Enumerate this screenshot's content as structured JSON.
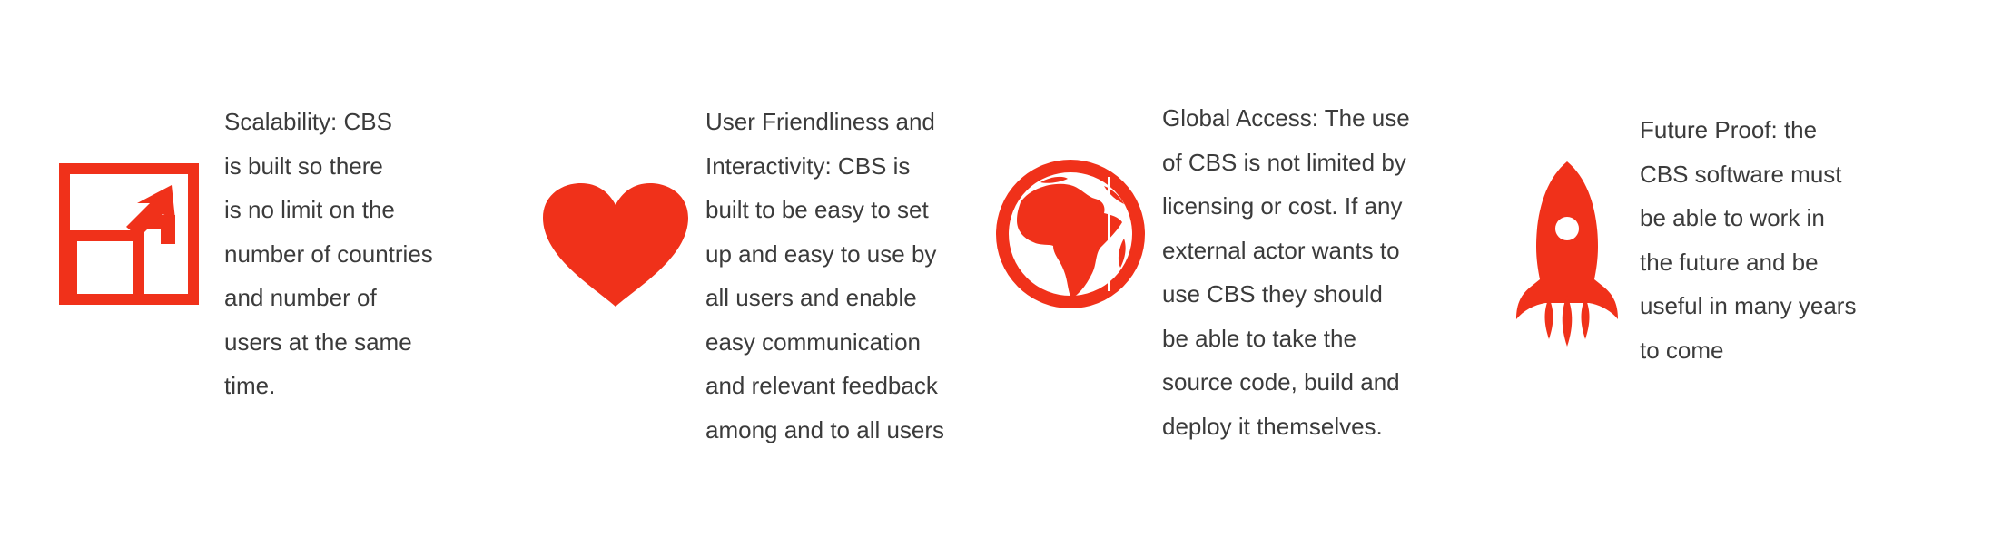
{
  "accent_color": "#f0311a",
  "features": [
    {
      "icon": "expand-icon",
      "lines": [
        "Scalability: CBS",
        "is built so there",
        "is no limit on the",
        "number of countries",
        "and number of",
        "users at the same",
        "time."
      ]
    },
    {
      "icon": "heart-icon",
      "lines": [
        "User Friendliness and",
        "Interactivity: CBS is",
        "built to be easy to set",
        "up and easy to use by",
        "all users and enable",
        "easy communication",
        "and relevant feedback",
        "among and to all users"
      ]
    },
    {
      "icon": "globe-africa-icon",
      "lines": [
        "Global Access: The use",
        "of CBS is not limited by",
        "licensing or cost. If any",
        "external actor wants to",
        "use CBS they should",
        "be able to take the",
        "source code, build and",
        "deploy it themselves."
      ]
    },
    {
      "icon": "rocket-icon",
      "lines": [
        "Future Proof: the",
        "CBS software must",
        "be able to work in",
        "the future and be",
        "useful in many years",
        "to come"
      ]
    }
  ]
}
